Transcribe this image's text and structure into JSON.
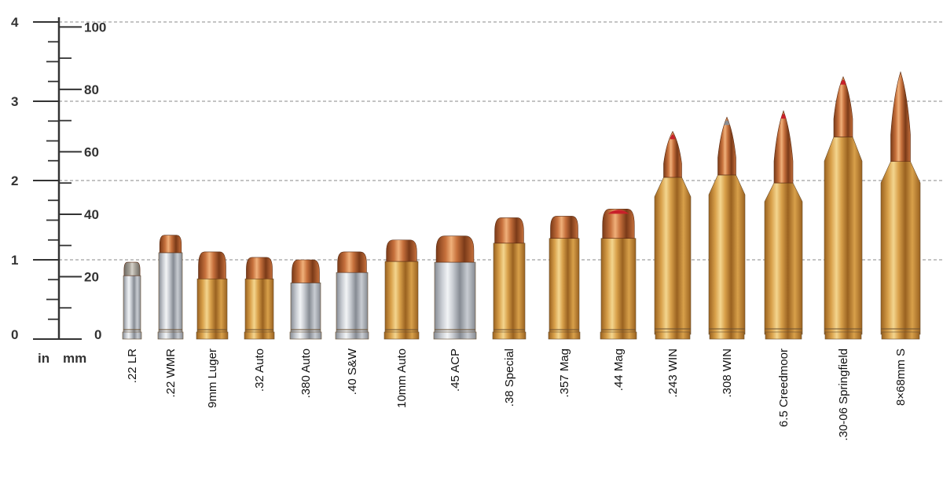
{
  "chart_data": {
    "type": "bar",
    "title": "",
    "units": {
      "inch_label": "in",
      "mm_label": "mm"
    },
    "inch_axis": {
      "ticks": [
        "0",
        "1",
        "2",
        "3",
        "4"
      ],
      "ylim": [
        0,
        4
      ]
    },
    "mm_axis": {
      "ticks": [
        "0",
        "20",
        "40",
        "60",
        "80",
        "100"
      ],
      "ylim": [
        0,
        101.6
      ]
    },
    "grid": true,
    "categories": [
      ".22 LR",
      ".22 WMR",
      "9mm Luger",
      ".32 Auto",
      ".380 Auto",
      ".40 S&W",
      "10mm Auto",
      ".45 ACP",
      ".38 Special",
      ".357 Mag",
      ".44 Mag",
      ".243 WIN",
      ".308 WIN",
      "6.5 Creedmoor",
      ".30-06 Springfield",
      "8×68mm S"
    ],
    "series": [
      {
        "values_in": [
          0.97,
          1.31,
          1.1,
          1.03,
          1.0,
          1.1,
          1.25,
          1.3,
          1.53,
          1.55,
          1.64,
          2.62,
          2.8,
          2.88,
          3.31,
          3.37
        ],
        "case_in": [
          0.8,
          1.09,
          0.76,
          0.76,
          0.71,
          0.84,
          0.98,
          0.97,
          1.21,
          1.27,
          1.27,
          2.04,
          2.07,
          1.97,
          2.55,
          2.24
        ],
        "tip": [
          "lead",
          "copper",
          "copper",
          "copper",
          "copper",
          "copper",
          "copper",
          "copper",
          "copper",
          "copper",
          "red",
          "red",
          "grey",
          "red",
          "red",
          "copper"
        ],
        "case_material": [
          "nickel",
          "nickel",
          "mixed",
          "brass",
          "nickel",
          "nickel",
          "brass",
          "nickel",
          "brass",
          "brass",
          "brass",
          "brass",
          "brass",
          "brass",
          "brass",
          "brass"
        ],
        "shape": [
          "pistol",
          "pistol",
          "pistol",
          "pistol",
          "pistol",
          "pistol",
          "pistol",
          "pistol",
          "pistol",
          "pistol",
          "pistol",
          "rifle",
          "rifle",
          "rifle",
          "rifle",
          "rifle"
        ]
      }
    ],
    "colors": {
      "brass": "#d8a04a",
      "brass_light": "#f3d58e",
      "brass_dark": "#9a6220",
      "nickel": "#c8ccd2",
      "nickel_light": "#f2f4f6",
      "nickel_dark": "#868b93",
      "copper": "#c6703c",
      "copper_light": "#f0b07a",
      "copper_dark": "#7a3a18",
      "lead": "#a8a39a",
      "red_tip": "#c8202a",
      "grey_tip": "#8a8d92",
      "axis": "#333333",
      "grid": "#888888"
    }
  }
}
